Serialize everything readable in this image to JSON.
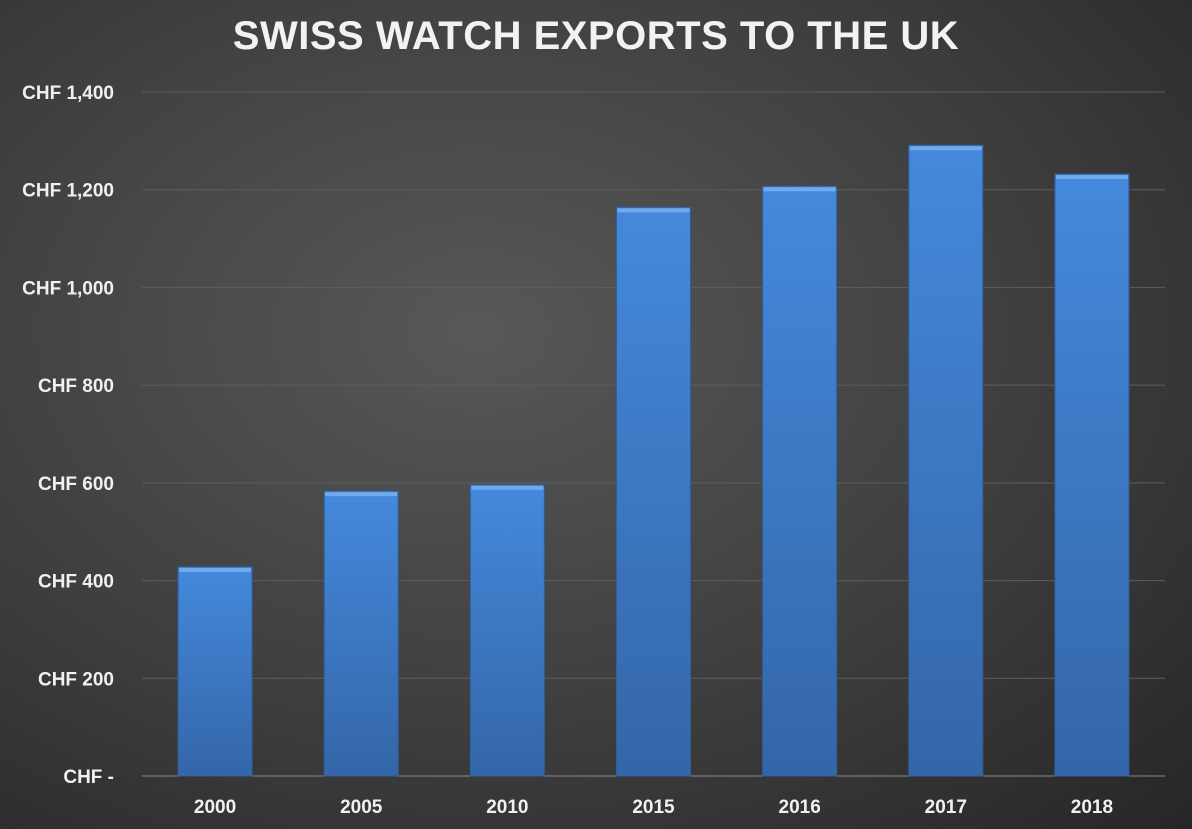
{
  "chart_data": {
    "type": "bar",
    "title": "SWISS WATCH EXPORTS TO THE UK",
    "xlabel": "",
    "ylabel": "",
    "categories": [
      "2000",
      "2005",
      "2010",
      "2015",
      "2016",
      "2017",
      "2018"
    ],
    "values": [
      428,
      583,
      596,
      1164,
      1207,
      1291,
      1232
    ],
    "ylim": [
      0,
      1400
    ],
    "yticks": [
      0,
      200,
      400,
      600,
      800,
      1000,
      1200,
      1400
    ],
    "ytick_labels": [
      "CHF -",
      "CHF 200",
      "CHF 400",
      "CHF 600",
      "CHF 800",
      "CHF 1,000",
      "CHF 1,200",
      "CHF 1,400"
    ],
    "grid": true,
    "legend": "none",
    "bar_color": "#3f85d8"
  }
}
